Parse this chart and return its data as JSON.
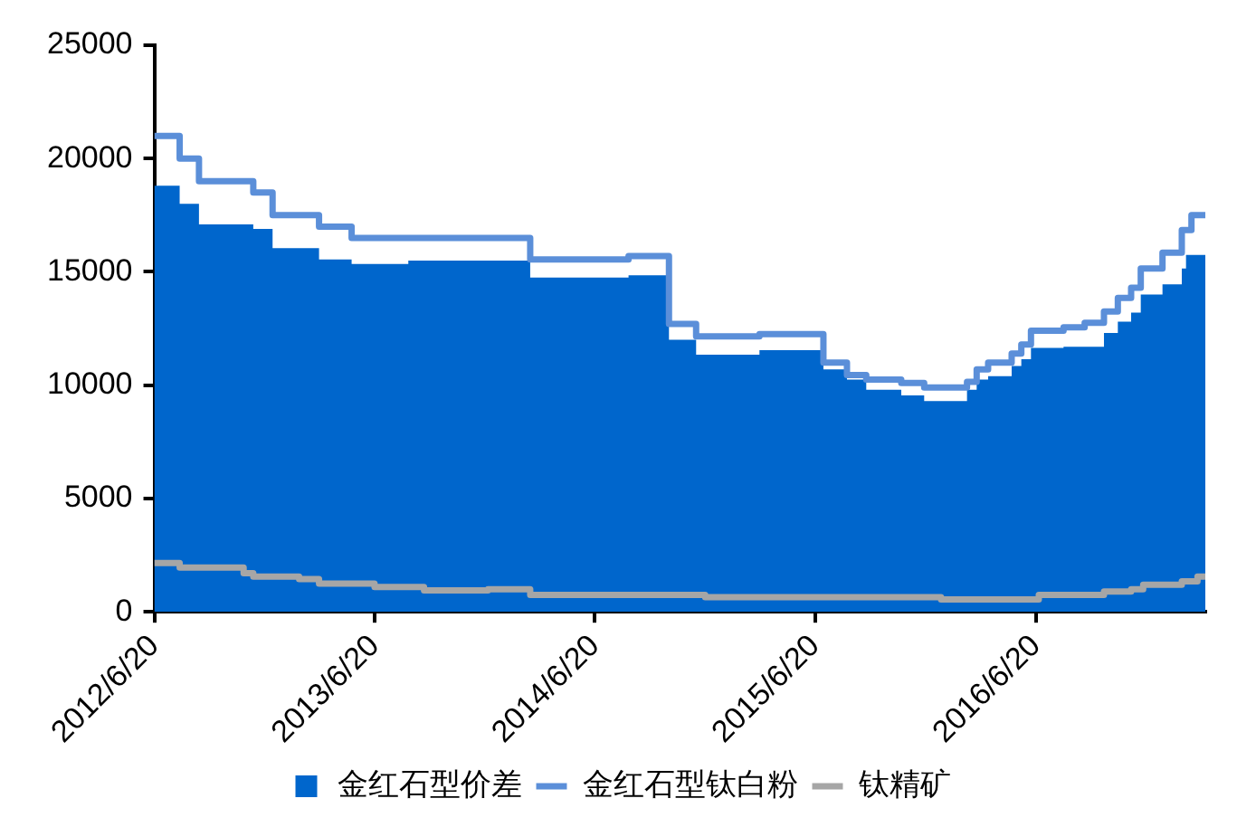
{
  "chart_data": {
    "type": "line",
    "xlim": [
      "2012-06-20",
      "2017-03-28"
    ],
    "xticks": [
      {
        "value": "2012-06-20",
        "label": "2012/6/20"
      },
      {
        "value": "2013-06-20",
        "label": "2013/6/20"
      },
      {
        "value": "2014-06-20",
        "label": "2014/6/20"
      },
      {
        "value": "2015-06-20",
        "label": "2015/6/20"
      },
      {
        "value": "2016-06-20",
        "label": "2016/6/20"
      }
    ],
    "ylim": [
      0,
      25000
    ],
    "yticks": [
      0,
      5000,
      10000,
      15000,
      20000,
      25000
    ],
    "grid": false,
    "legend": "bottom",
    "marker": "none",
    "series": [
      {
        "name": "金红石型价差",
        "type": "area",
        "color": "#0066cc",
        "x": [
          "2012-06-20",
          "2012-08-01",
          "2012-08-01",
          "2012-09-02",
          "2012-09-02",
          "2012-12-01",
          "2012-12-01",
          "2013-01-02",
          "2013-01-02",
          "2013-03-20",
          "2013-03-20",
          "2013-05-13",
          "2013-05-13",
          "2013-08-15",
          "2013-08-15",
          "2014-03-05",
          "2014-03-05",
          "2014-08-15",
          "2014-08-15",
          "2014-10-21",
          "2014-10-21",
          "2014-12-05",
          "2014-12-05",
          "2015-03-20",
          "2015-03-20",
          "2015-07-04",
          "2015-07-04",
          "2015-08-12",
          "2015-08-12",
          "2015-09-13",
          "2015-09-13",
          "2015-11-10",
          "2015-11-10",
          "2015-12-18",
          "2015-12-18",
          "2016-02-27",
          "2016-02-27",
          "2016-03-14",
          "2016-03-14",
          "2016-04-02",
          "2016-04-02",
          "2016-05-11",
          "2016-05-11",
          "2016-05-27",
          "2016-05-27",
          "2016-06-12",
          "2016-06-12",
          "2016-08-05",
          "2016-08-05",
          "2016-10-11",
          "2016-10-11",
          "2016-11-03",
          "2016-11-03",
          "2016-11-25",
          "2016-11-25",
          "2016-12-11",
          "2016-12-11",
          "2017-01-16",
          "2017-01-16",
          "2017-02-17",
          "2017-02-17",
          "2017-02-24",
          "2017-02-24",
          "2017-03-28"
        ],
        "values": [
          18800,
          18800,
          18000,
          18000,
          17100,
          17100,
          16900,
          16900,
          16050,
          16050,
          15550,
          15550,
          15350,
          15350,
          15500,
          15500,
          14750,
          14750,
          14850,
          14850,
          12000,
          12000,
          11350,
          11350,
          11550,
          11550,
          10700,
          10700,
          10250,
          10250,
          9800,
          9800,
          9550,
          9550,
          9300,
          9300,
          9800,
          9800,
          10250,
          10250,
          10400,
          10400,
          10850,
          10850,
          11150,
          11150,
          11650,
          11650,
          11700,
          11700,
          12300,
          12300,
          12800,
          12800,
          13200,
          13200,
          14000,
          14000,
          14450,
          14450,
          15150,
          15150,
          15750,
          15750
        ]
      },
      {
        "name": "金红石型钛白粉",
        "type": "line",
        "color": "#5b8fd9",
        "x": [
          "2012-06-20",
          "2012-08-01",
          "2012-08-01",
          "2012-09-02",
          "2012-09-02",
          "2012-12-01",
          "2012-12-01",
          "2013-01-02",
          "2013-01-02",
          "2013-03-20",
          "2013-03-20",
          "2013-05-13",
          "2013-05-13",
          "2014-03-05",
          "2014-03-05",
          "2014-08-15",
          "2014-08-15",
          "2014-10-21",
          "2014-10-21",
          "2014-12-05",
          "2014-12-05",
          "2015-03-20",
          "2015-03-20",
          "2015-07-04",
          "2015-07-04",
          "2015-08-12",
          "2015-08-12",
          "2015-09-13",
          "2015-09-13",
          "2015-11-10",
          "2015-11-10",
          "2015-12-18",
          "2015-12-18",
          "2016-02-27",
          "2016-02-27",
          "2016-03-14",
          "2016-03-14",
          "2016-04-02",
          "2016-04-02",
          "2016-05-11",
          "2016-05-11",
          "2016-05-27",
          "2016-05-27",
          "2016-06-12",
          "2016-06-12",
          "2016-08-05",
          "2016-08-05",
          "2016-09-09",
          "2016-09-09",
          "2016-10-11",
          "2016-10-11",
          "2016-11-03",
          "2016-11-03",
          "2016-11-25",
          "2016-11-25",
          "2016-12-11",
          "2016-12-11",
          "2017-01-16",
          "2017-01-16",
          "2017-02-17",
          "2017-02-17",
          "2017-03-05",
          "2017-03-05",
          "2017-03-28"
        ],
        "values": [
          21000,
          21000,
          20000,
          20000,
          19000,
          19000,
          18500,
          18500,
          17500,
          17500,
          17000,
          17000,
          16500,
          16500,
          15550,
          15550,
          15700,
          15700,
          12700,
          12700,
          12150,
          12150,
          12250,
          12250,
          11000,
          11000,
          10450,
          10450,
          10250,
          10250,
          10100,
          10100,
          9900,
          9900,
          10150,
          10150,
          10700,
          10700,
          11000,
          11000,
          11400,
          11400,
          11800,
          11800,
          12400,
          12400,
          12550,
          12550,
          12750,
          12750,
          13250,
          13250,
          13850,
          13850,
          14300,
          14300,
          15150,
          15150,
          15850,
          15850,
          16850,
          16850,
          17500,
          17500
        ]
      },
      {
        "name": "钛精矿",
        "type": "line",
        "color": "#a6a6a6",
        "x": [
          "2012-06-20",
          "2012-08-01",
          "2012-08-01",
          "2012-11-15",
          "2012-11-15",
          "2012-12-01",
          "2012-12-01",
          "2013-02-15",
          "2013-02-15",
          "2013-03-20",
          "2013-03-20",
          "2013-06-20",
          "2013-06-20",
          "2013-09-10",
          "2013-09-10",
          "2013-12-25",
          "2013-12-25",
          "2014-03-05",
          "2014-03-05",
          "2014-12-20",
          "2014-12-20",
          "2016-01-15",
          "2016-01-15",
          "2016-05-11",
          "2016-05-11",
          "2016-06-25",
          "2016-06-25",
          "2016-10-11",
          "2016-10-11",
          "2016-11-25",
          "2016-11-25",
          "2016-12-15",
          "2016-12-15",
          "2017-02-17",
          "2017-02-17",
          "2017-03-15",
          "2017-03-15",
          "2017-03-28"
        ],
        "values": [
          2150,
          2150,
          1950,
          1950,
          1700,
          1700,
          1550,
          1550,
          1450,
          1450,
          1250,
          1250,
          1100,
          1100,
          950,
          950,
          1000,
          1000,
          750,
          750,
          650,
          650,
          550,
          550,
          550,
          550,
          750,
          750,
          900,
          900,
          1000,
          1000,
          1200,
          1200,
          1350,
          1350,
          1550,
          1550
        ]
      }
    ]
  }
}
